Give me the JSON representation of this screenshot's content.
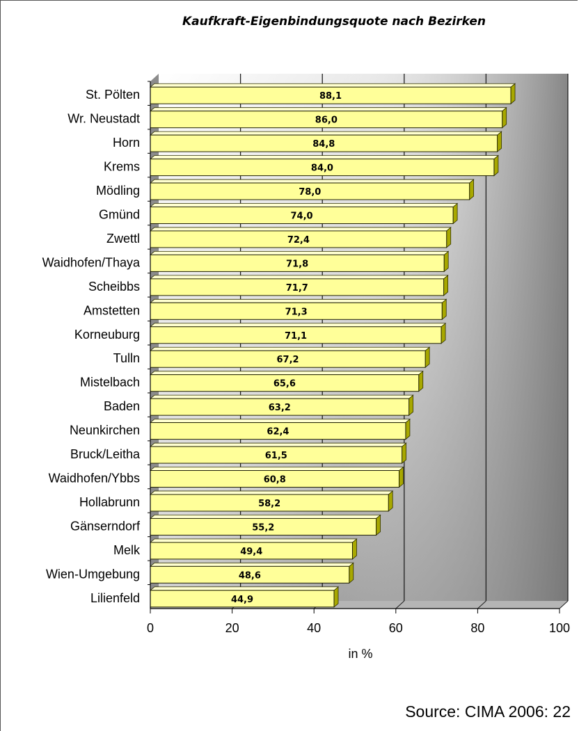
{
  "chart_data": {
    "type": "bar",
    "orientation": "horizontal",
    "title": "Kaufkraft-Eigenbindungsquote nach Bezirken",
    "xlabel": "in %",
    "ylabel": "",
    "xlim": [
      0,
      100
    ],
    "x_ticks": [
      "0",
      "20",
      "40",
      "60",
      "80",
      "100"
    ],
    "categories": [
      "St. Pölten",
      "Wr. Neustadt",
      "Horn",
      "Krems",
      "Mödling",
      "Gmünd",
      "Zwettl",
      "Waidhofen/Thaya",
      "Scheibbs",
      "Amstetten",
      "Korneuburg",
      "Tulln",
      "Mistelbach",
      "Baden",
      "Neunkirchen",
      "Bruck/Leitha",
      "Waidhofen/Ybbs",
      "Hollabrunn",
      "Gänserndorf",
      "Melk",
      "Wien-Umgebung",
      "Lilienfeld"
    ],
    "values": [
      88.1,
      86.0,
      84.8,
      84.0,
      78.0,
      74.0,
      72.4,
      71.8,
      71.7,
      71.3,
      71.1,
      67.2,
      65.6,
      63.2,
      62.4,
      61.5,
      60.8,
      58.2,
      55.2,
      49.4,
      48.6,
      44.9
    ],
    "value_labels": [
      "88,1",
      "86,0",
      "84,8",
      "84,0",
      "78,0",
      "74,0",
      "72,4",
      "71,8",
      "71,7",
      "71,3",
      "71,1",
      "67,2",
      "65,6",
      "63,2",
      "62,4",
      "61,5",
      "60,8",
      "58,2",
      "55,2",
      "49,4",
      "48,6",
      "44,9"
    ],
    "bar_color": "#ffff99",
    "grid": true,
    "legend": "none"
  },
  "source": "Source: CIMA 2006: 22"
}
